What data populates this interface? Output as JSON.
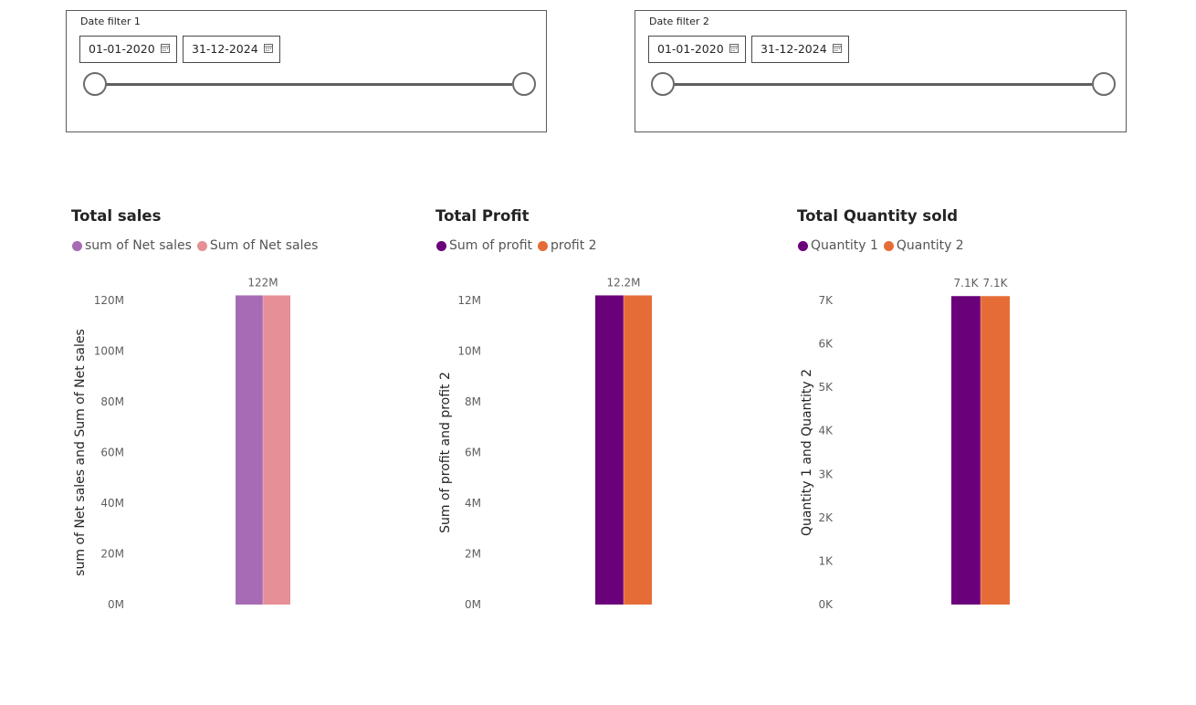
{
  "slicers": [
    {
      "title": "Date filter 1",
      "start": "01-01-2020",
      "end": "31-12-2024"
    },
    {
      "title": "Date filter 2",
      "start": "01-01-2020",
      "end": "31-12-2024"
    }
  ],
  "charts": [
    {
      "title": "Total sales"
    },
    {
      "title": "Total Profit"
    },
    {
      "title": "Total Quantity sold"
    }
  ],
  "chart_data": [
    {
      "type": "bar",
      "title": "Total sales",
      "ylabel": "sum of Net sales and Sum of Net sales",
      "ylim": [
        0,
        120000000
      ],
      "yticks": [
        "0M",
        "20M",
        "40M",
        "60M",
        "80M",
        "100M",
        "120M"
      ],
      "series": [
        {
          "name": "sum of Net sales",
          "color": "#a66bb4",
          "values": [
            122000000
          ],
          "label": "122M"
        },
        {
          "name": "Sum of Net sales",
          "color": "#e68f96",
          "values": [
            122000000
          ],
          "label": ""
        }
      ]
    },
    {
      "type": "bar",
      "title": "Total Profit",
      "ylabel": "Sum of profit and profit 2",
      "ylim": [
        0,
        12000000
      ],
      "yticks": [
        "0M",
        "2M",
        "4M",
        "6M",
        "8M",
        "10M",
        "12M"
      ],
      "series": [
        {
          "name": "Sum of profit",
          "color": "#6b007b",
          "values": [
            12200000
          ],
          "label": "12.2M"
        },
        {
          "name": "profit 2",
          "color": "#e66c37",
          "values": [
            12200000
          ],
          "label": ""
        }
      ]
    },
    {
      "type": "bar",
      "title": "Total Quantity sold",
      "ylabel": "Quantity 1 and Quantity 2",
      "ylim": [
        0,
        7000
      ],
      "yticks": [
        "0K",
        "1K",
        "2K",
        "3K",
        "4K",
        "5K",
        "6K",
        "7K"
      ],
      "series": [
        {
          "name": "Quantity 1",
          "color": "#6b007b",
          "values": [
            7100
          ],
          "label": "7.1K"
        },
        {
          "name": "Quantity 2",
          "color": "#e66c37",
          "values": [
            7100
          ],
          "label": "7.1K"
        }
      ]
    }
  ]
}
